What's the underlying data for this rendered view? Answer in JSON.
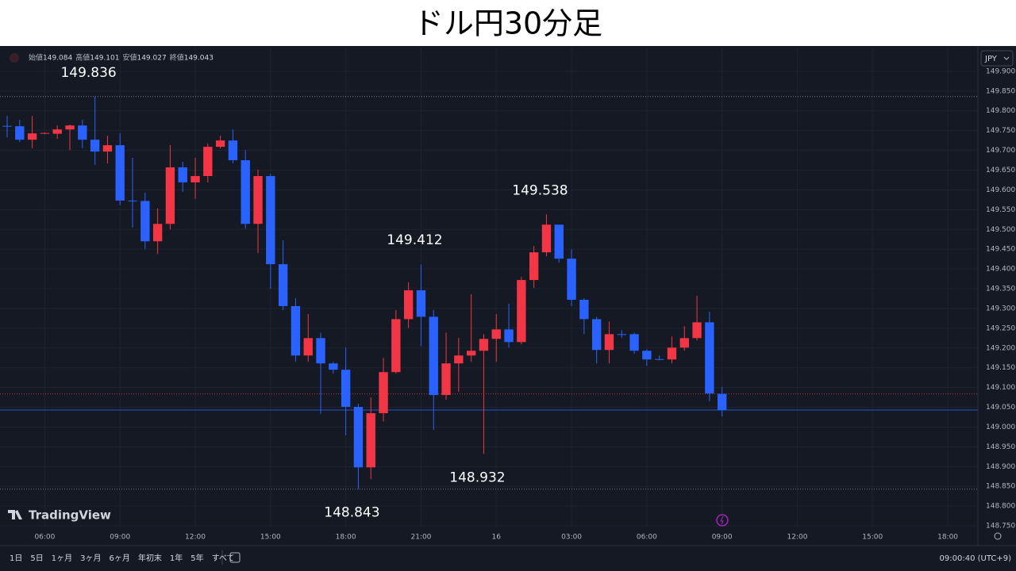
{
  "title": "ドル円30分足",
  "ohlc_legend": [
    {
      "label": "始値",
      "value": "149.084"
    },
    {
      "label": "高値",
      "value": "149.101"
    },
    {
      "label": "安値",
      "value": "149.027"
    },
    {
      "label": "終値",
      "value": "149.043"
    }
  ],
  "currency": "JPY",
  "logo": "TradingView",
  "ranges": [
    "1日",
    "5日",
    "1ヶ月",
    "3ヶ月",
    "6ヶ月",
    "年初末",
    "1年",
    "5年",
    "すべて"
  ],
  "clock": "09:00:40 (UTC+9)",
  "chart_data": {
    "type": "candlestick",
    "up_color": "#f23645",
    "down_color": "#2962ff",
    "grid": true,
    "open": [
      149.762,
      149.761,
      149.727,
      149.743,
      149.742,
      149.753,
      149.763,
      149.727,
      149.697,
      149.713,
      149.573,
      149.572,
      149.47,
      149.514,
      149.657,
      149.619,
      149.635,
      149.709,
      149.725,
      149.675,
      149.514,
      149.635,
      149.412,
      149.306,
      149.181,
      149.225,
      149.161,
      149.145,
      149.051,
      148.898,
      149.035,
      149.139,
      149.273,
      149.346,
      149.279,
      149.081,
      149.161,
      149.181,
      149.193,
      149.223,
      149.247,
      149.215,
      149.372,
      149.442,
      149.512,
      149.426,
      149.322,
      149.273,
      149.195,
      149.235,
      149.235,
      149.193,
      149.172,
      149.171,
      149.201,
      149.225,
      149.265,
      149.084
    ],
    "high": [
      149.787,
      149.777,
      149.787,
      149.746,
      149.763,
      149.765,
      149.777,
      149.836,
      149.737,
      149.743,
      149.681,
      149.593,
      149.553,
      149.713,
      149.671,
      149.681,
      149.717,
      149.737,
      149.753,
      149.701,
      149.651,
      149.641,
      149.472,
      149.326,
      149.286,
      149.239,
      149.165,
      149.201,
      149.059,
      149.075,
      149.175,
      149.296,
      149.366,
      149.412,
      149.296,
      149.239,
      149.225,
      149.336,
      149.235,
      149.286,
      149.312,
      149.38,
      149.458,
      149.538,
      149.512,
      149.45,
      149.326,
      149.279,
      149.267,
      149.245,
      149.239,
      149.197,
      149.181,
      149.229,
      149.255,
      149.332,
      149.292,
      149.101
    ],
    "low": [
      149.733,
      149.721,
      149.705,
      149.741,
      149.729,
      149.701,
      149.705,
      149.663,
      149.667,
      149.561,
      149.505,
      149.45,
      149.438,
      149.5,
      149.595,
      149.577,
      149.619,
      149.705,
      149.667,
      149.502,
      149.44,
      149.35,
      149.296,
      149.165,
      149.165,
      149.033,
      149.135,
      148.979,
      148.843,
      148.868,
      149.014,
      149.135,
      149.251,
      149.205,
      148.993,
      149.069,
      149.089,
      149.165,
      148.932,
      149.165,
      149.201,
      149.209,
      149.352,
      149.432,
      149.416,
      149.306,
      149.235,
      149.161,
      149.161,
      149.225,
      149.185,
      149.155,
      149.169,
      149.161,
      149.193,
      149.219,
      149.065,
      149.027
    ],
    "close": [
      149.76,
      149.727,
      149.743,
      149.744,
      149.753,
      149.763,
      149.727,
      149.697,
      149.713,
      149.573,
      149.572,
      149.47,
      149.514,
      149.657,
      149.619,
      149.635,
      149.709,
      149.725,
      149.675,
      149.514,
      149.635,
      149.412,
      149.306,
      149.181,
      149.225,
      149.161,
      149.145,
      149.051,
      148.898,
      149.035,
      149.139,
      149.273,
      149.346,
      149.279,
      149.081,
      149.161,
      149.181,
      149.193,
      149.223,
      149.247,
      149.215,
      149.372,
      149.442,
      149.512,
      149.426,
      149.322,
      149.273,
      149.195,
      149.235,
      149.234,
      149.193,
      149.171,
      149.171,
      149.201,
      149.225,
      149.265,
      149.085,
      149.043
    ],
    "xlim": [
      -0.57,
      77.4
    ],
    "xticks": [
      {
        "value": 3,
        "label": "06:00"
      },
      {
        "value": 9,
        "label": "09:00"
      },
      {
        "value": 15,
        "label": "12:00"
      },
      {
        "value": 21,
        "label": "15:00"
      },
      {
        "value": 27,
        "label": "18:00"
      },
      {
        "value": 33,
        "label": "21:00"
      },
      {
        "value": 39,
        "label": "16"
      },
      {
        "value": 45,
        "label": "03:00"
      },
      {
        "value": 51,
        "label": "06:00"
      },
      {
        "value": 57,
        "label": "09:00"
      },
      {
        "value": 63,
        "label": "12:00"
      },
      {
        "value": 69,
        "label": "15:00"
      },
      {
        "value": 75,
        "label": "18:00"
      }
    ],
    "ylim": [
      148.7,
      149.96
    ],
    "yticks": [
      {
        "value": 148.75,
        "label": "148.750"
      },
      {
        "value": 148.8,
        "label": "148.800"
      },
      {
        "value": 148.85,
        "label": "148.850"
      },
      {
        "value": 148.9,
        "label": "148.900"
      },
      {
        "value": 148.95,
        "label": "148.950"
      },
      {
        "value": 149.0,
        "label": "149.000"
      },
      {
        "value": 149.05,
        "label": "149.050"
      },
      {
        "value": 149.1,
        "label": "149.100"
      },
      {
        "value": 149.15,
        "label": "149.150"
      },
      {
        "value": 149.2,
        "label": "149.200"
      },
      {
        "value": 149.25,
        "label": "149.250"
      },
      {
        "value": 149.3,
        "label": "149.300"
      },
      {
        "value": 149.35,
        "label": "149.350"
      },
      {
        "value": 149.4,
        "label": "149.400"
      },
      {
        "value": 149.45,
        "label": "149.450"
      },
      {
        "value": 149.5,
        "label": "149.500"
      },
      {
        "value": 149.55,
        "label": "149.550"
      },
      {
        "value": 149.6,
        "label": "149.600"
      },
      {
        "value": 149.65,
        "label": "149.650"
      },
      {
        "value": 149.7,
        "label": "149.700"
      },
      {
        "value": 149.75,
        "label": "149.750"
      },
      {
        "value": 149.8,
        "label": "149.800"
      },
      {
        "value": 149.85,
        "label": "149.850"
      },
      {
        "value": 149.9,
        "label": "149.900"
      }
    ],
    "annotations": [
      {
        "label": "149.836",
        "value": 149.836,
        "index": 7,
        "line": true
      },
      {
        "label": "149.412",
        "value": 149.412,
        "index": 33,
        "line": false
      },
      {
        "label": "149.538",
        "value": 149.538,
        "index": 43,
        "line": false
      },
      {
        "label": "148.932",
        "value": 148.932,
        "index": 38,
        "line": false
      },
      {
        "label": "148.843",
        "value": 148.843,
        "index": 28,
        "line": true
      }
    ],
    "price_lines": [
      {
        "value": 149.084,
        "color": "#f23645"
      },
      {
        "value": 149.043,
        "color": "#2962ff"
      }
    ]
  }
}
